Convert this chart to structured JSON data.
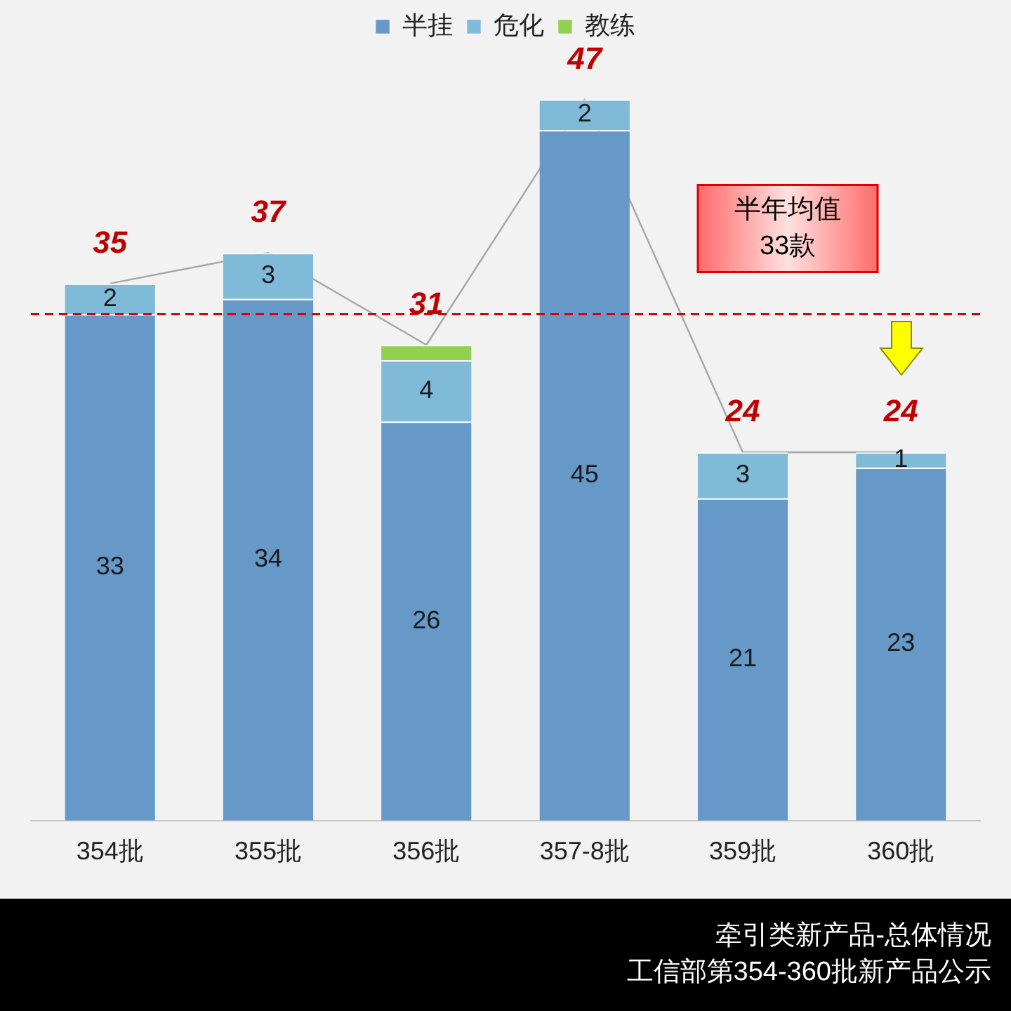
{
  "chart_data": {
    "type": "bar",
    "stacked": true,
    "legend": "top",
    "grid": false,
    "tick_labels": "x",
    "categories": [
      "354批",
      "355批",
      "356批",
      "357-8批",
      "359批",
      "360批"
    ],
    "series": [
      {
        "name": "半挂",
        "color": "#6699c7",
        "values": [
          33,
          34,
          26,
          45,
          21,
          23
        ],
        "value_labels": [
          "33",
          "34",
          "26",
          "45",
          "21",
          "23"
        ]
      },
      {
        "name": "危化",
        "color": "#7fbad8",
        "values": [
          2,
          3,
          4,
          2,
          3,
          1
        ],
        "value_labels": [
          "2",
          "3",
          "4",
          "2",
          "3",
          "1"
        ]
      },
      {
        "name": "教练",
        "color": "#92d050",
        "values": [
          null,
          null,
          1,
          null,
          null,
          null
        ]
      },
      {
        "type": "line",
        "color": "#a6a6a6",
        "marker": "none",
        "values": [
          35,
          37,
          31,
          47,
          24,
          24
        ]
      }
    ],
    "totals": [
      "35",
      "37",
      "31",
      "47",
      "24",
      "24"
    ],
    "ref_lines": [
      {
        "axis": "y",
        "value": 33,
        "label": "半年均值\n33款",
        "color": "#e00000",
        "line_style": "dashed"
      }
    ],
    "annotations": [
      "牵引类新产品-总体情况",
      "工信部第354-360批新产品公示"
    ]
  }
}
